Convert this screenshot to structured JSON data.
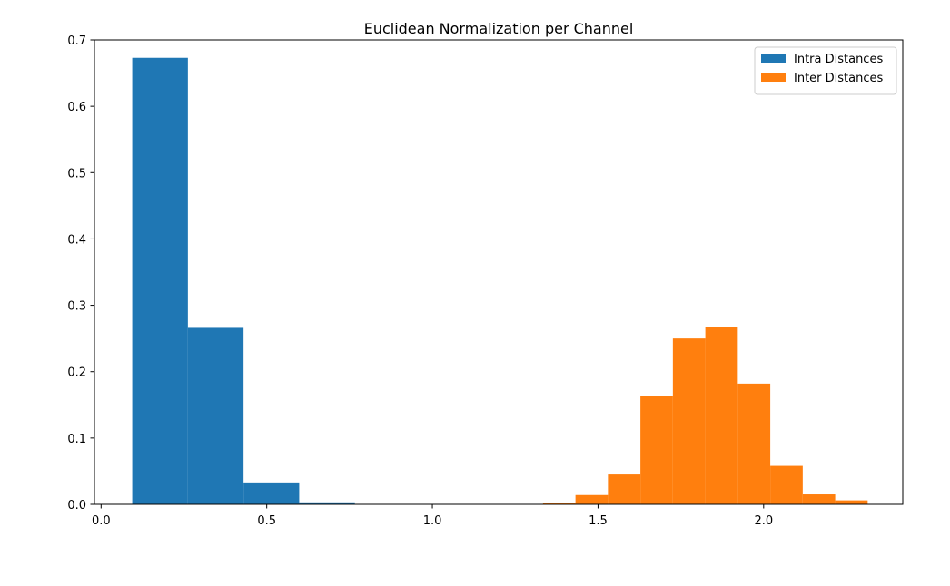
{
  "chart_data": {
    "type": "histogram",
    "title": "Euclidean Normalization per Channel",
    "xlabel": "",
    "ylabel": "",
    "xlim": [
      -0.02,
      2.42
    ],
    "ylim": [
      0,
      0.7
    ],
    "x_ticks": [
      "0.0",
      "0.5",
      "1.0",
      "1.5",
      "2.0"
    ],
    "y_ticks": [
      "0.0",
      "0.1",
      "0.2",
      "0.3",
      "0.4",
      "0.5",
      "0.6",
      "0.7"
    ],
    "grid": false,
    "legend_position": "top-right",
    "series": [
      {
        "name": "Intra Distances",
        "color": "#1f77b4",
        "bins": [
          {
            "start": 0.094,
            "end": 0.262,
            "value": 0.673
          },
          {
            "start": 0.262,
            "end": 0.43,
            "value": 0.266
          },
          {
            "start": 0.43,
            "end": 0.598,
            "value": 0.033
          },
          {
            "start": 0.598,
            "end": 0.766,
            "value": 0.003
          }
        ]
      },
      {
        "name": "Inter Distances",
        "color": "#ff7f0e",
        "bins": [
          {
            "start": 1.334,
            "end": 1.432,
            "value": 0.002
          },
          {
            "start": 1.432,
            "end": 1.53,
            "value": 0.014
          },
          {
            "start": 1.53,
            "end": 1.628,
            "value": 0.045
          },
          {
            "start": 1.628,
            "end": 1.726,
            "value": 0.163
          },
          {
            "start": 1.726,
            "end": 1.824,
            "value": 0.25
          },
          {
            "start": 1.824,
            "end": 1.922,
            "value": 0.267
          },
          {
            "start": 1.922,
            "end": 2.02,
            "value": 0.182
          },
          {
            "start": 2.02,
            "end": 2.118,
            "value": 0.058
          },
          {
            "start": 2.118,
            "end": 2.216,
            "value": 0.015
          },
          {
            "start": 2.216,
            "end": 2.314,
            "value": 0.006
          }
        ]
      }
    ]
  }
}
